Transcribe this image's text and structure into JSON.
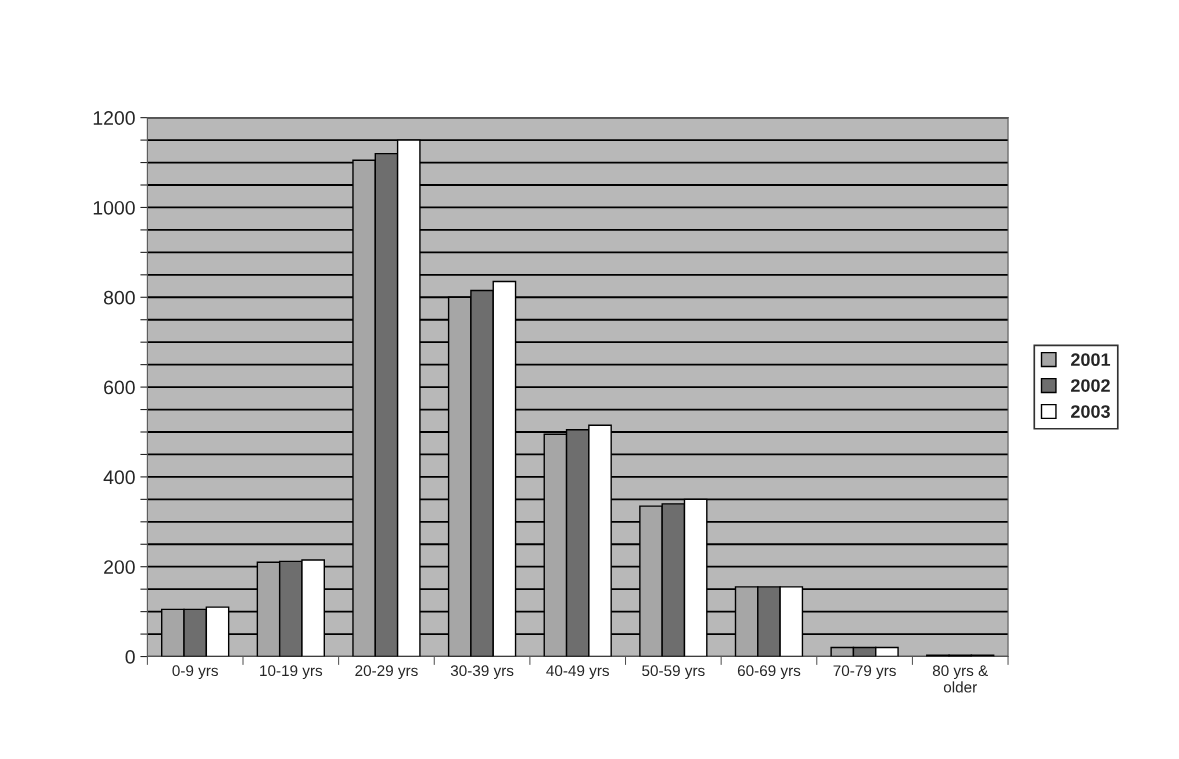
{
  "chart_data": {
    "type": "bar",
    "categories": [
      "0-9 yrs",
      "10-19 yrs",
      "20-29 yrs",
      "30-39 yrs",
      "40-49 yrs",
      "50-59 yrs",
      "60-69 yrs",
      "70-79 yrs",
      "80 yrs &\nolder"
    ],
    "series": [
      {
        "name": "2001",
        "color": "#a6a6a6",
        "values": [
          105,
          210,
          1105,
          800,
          495,
          335,
          155,
          20,
          3
        ]
      },
      {
        "name": "2002",
        "color": "#6e6e6e",
        "values": [
          105,
          212,
          1120,
          815,
          505,
          340,
          155,
          20,
          3
        ]
      },
      {
        "name": "2003",
        "color": "#ffffff",
        "values": [
          110,
          215,
          1150,
          835,
          515,
          350,
          155,
          20,
          3
        ]
      }
    ],
    "ylim": [
      0,
      1200
    ],
    "yticks": [
      0,
      {
        "value": 50,
        "label": null
      },
      {
        "value": 100,
        "label": null
      },
      {
        "value": 150,
        "label": null
      },
      200,
      {
        "value": 250,
        "label": null
      },
      {
        "value": 300,
        "label": null
      },
      {
        "value": 350,
        "label": null
      },
      400,
      {
        "value": 450,
        "label": null
      },
      {
        "value": 500,
        "label": null
      },
      {
        "value": 550,
        "label": null
      },
      600,
      {
        "value": 650,
        "label": null
      },
      {
        "value": 700,
        "label": null
      },
      {
        "value": 750,
        "label": null
      },
      800,
      {
        "value": 850,
        "label": null
      },
      {
        "value": 900,
        "label": null
      },
      {
        "value": 950,
        "label": null
      },
      1000,
      {
        "value": 1050,
        "label": null
      },
      {
        "value": 1100,
        "label": null
      },
      {
        "value": 1150,
        "label": null
      },
      1200
    ],
    "grid": "y",
    "legend": "right"
  }
}
